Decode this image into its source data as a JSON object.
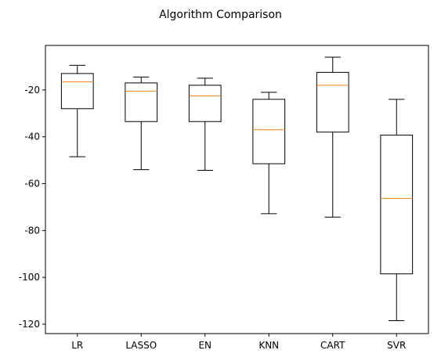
{
  "chart_data": {
    "type": "boxplot",
    "title": "Algorithm Comparison",
    "xlabel": "",
    "ylabel": "",
    "ylim": [
      -124,
      -1
    ],
    "yticks": [
      -120,
      -100,
      -80,
      -60,
      -40,
      -20
    ],
    "grid": false,
    "categories": [
      "LR",
      "LASSO",
      "EN",
      "KNN",
      "CART",
      "SVR"
    ],
    "boxes": [
      {
        "whisker_low": -48.5,
        "q1": -28.0,
        "median": -16.5,
        "q3": -13.0,
        "whisker_high": -9.5
      },
      {
        "whisker_low": -54.0,
        "q1": -33.5,
        "median": -20.5,
        "q3": -17.0,
        "whisker_high": -14.5
      },
      {
        "whisker_low": -54.3,
        "q1": -33.5,
        "median": -22.5,
        "q3": -18.0,
        "whisker_high": -15.0
      },
      {
        "whisker_low": -72.8,
        "q1": -51.5,
        "median": -37.0,
        "q3": -24.0,
        "whisker_high": -21.0
      },
      {
        "whisker_low": -74.3,
        "q1": -38.0,
        "median": -18.0,
        "q3": -12.5,
        "whisker_high": -6.0
      },
      {
        "whisker_low": -118.5,
        "q1": -98.5,
        "median": -66.3,
        "q3": -39.3,
        "whisker_high": -24.0
      }
    ],
    "colors": {
      "box": "#000000",
      "median": "#ff7f0e"
    }
  }
}
